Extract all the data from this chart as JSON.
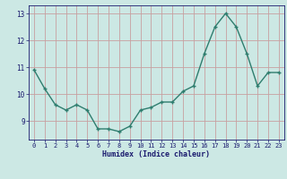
{
  "x": [
    0,
    1,
    2,
    3,
    4,
    5,
    6,
    7,
    8,
    9,
    10,
    11,
    12,
    13,
    14,
    15,
    16,
    17,
    18,
    19,
    20,
    21,
    22,
    23
  ],
  "y": [
    10.9,
    10.2,
    9.6,
    9.4,
    9.6,
    9.4,
    8.7,
    8.7,
    8.6,
    8.8,
    9.4,
    9.5,
    9.7,
    9.7,
    10.1,
    10.3,
    11.5,
    12.5,
    13.0,
    12.5,
    11.5,
    10.3,
    10.8,
    10.8
  ],
  "xlabel": "Humidex (Indice chaleur)",
  "ylim": [
    8.3,
    13.3
  ],
  "xlim": [
    -0.5,
    23.5
  ],
  "line_color": "#2e7d6e",
  "bg_color": "#cce8e4",
  "grid_color": "#c8a0a0",
  "tick_label_color": "#1a1a6e",
  "xlabel_color": "#1a1a6e",
  "yticks": [
    9,
    10,
    11,
    12,
    13
  ],
  "xticks": [
    0,
    1,
    2,
    3,
    4,
    5,
    6,
    7,
    8,
    9,
    10,
    11,
    12,
    13,
    14,
    15,
    16,
    17,
    18,
    19,
    20,
    21,
    22,
    23
  ]
}
